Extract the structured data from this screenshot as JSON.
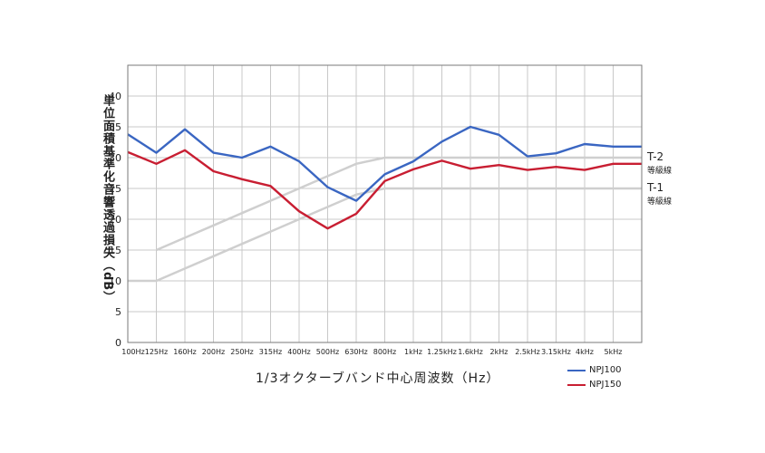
{
  "chart_data": {
    "type": "line",
    "ylabel": "単位面積基準化音響透過損失（dB）",
    "xlabel": "1/3オクターブバンド中心周波数（Hz）",
    "ylim": [
      0,
      45
    ],
    "yticks": [
      0,
      5,
      10,
      15,
      20,
      25,
      30,
      35,
      40
    ],
    "grid": true,
    "legend_position": "bottom-right",
    "categories": [
      "100Hz",
      "125Hz",
      "160Hz",
      "200Hz",
      "250Hz",
      "315Hz",
      "400Hz",
      "500Hz",
      "630Hz",
      "800Hz",
      "1kHz",
      "1.25kHz",
      "1.6kHz",
      "2kHz",
      "2.5kHz",
      "3.15kHz",
      "4kHz",
      "5kHz"
    ],
    "series": [
      {
        "name": "NPJ100",
        "color": "#3a66c2",
        "values": [
          33.8,
          30.8,
          34.6,
          30.8,
          30.0,
          31.8,
          29.4,
          25.2,
          23.0,
          27.3,
          29.4,
          32.6,
          35.0,
          33.7,
          30.2,
          30.7,
          32.2,
          31.8
        ]
      },
      {
        "name": "NPJ150",
        "color": "#c81e32",
        "values": [
          30.9,
          29.0,
          31.2,
          27.8,
          26.5,
          25.4,
          21.3,
          18.5,
          20.9,
          26.2,
          28.1,
          29.5,
          28.2,
          28.8,
          28.0,
          28.5,
          28.0,
          29.0
        ]
      }
    ],
    "reference_lines": [
      {
        "name": "T-2",
        "sub": "等級線",
        "values": [
          null,
          15,
          17,
          19,
          21,
          23,
          25,
          27,
          29,
          30,
          30,
          30,
          30,
          30,
          30,
          30,
          30,
          30
        ],
        "color": "#cfcfcf"
      },
      {
        "name": "T-1",
        "sub": "等級線",
        "values": [
          10,
          10,
          12,
          14,
          16,
          18,
          20,
          22,
          24,
          25,
          25,
          25,
          25,
          25,
          25,
          25,
          25,
          25
        ],
        "color": "#cfcfcf"
      }
    ]
  }
}
